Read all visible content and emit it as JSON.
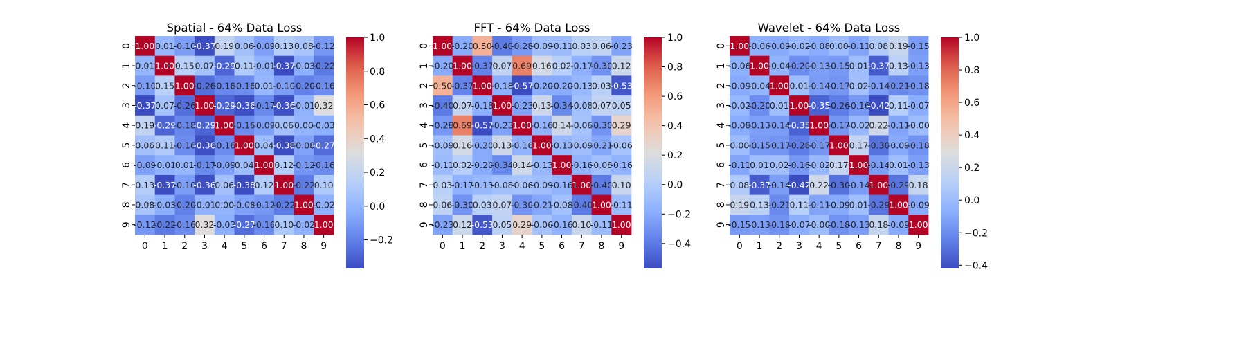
{
  "chart_data": [
    {
      "type": "heatmap",
      "title": "Spatial - 64% Data Loss",
      "x_labels": [
        "0",
        "1",
        "2",
        "3",
        "4",
        "5",
        "6",
        "7",
        "8",
        "9"
      ],
      "y_labels": [
        "0",
        "1",
        "2",
        "3",
        "4",
        "5",
        "6",
        "7",
        "8",
        "9"
      ],
      "vmin": -0.37,
      "vmax": 1.0,
      "colorbar_ticks": [
        1.0,
        0.8,
        0.6,
        0.4,
        0.2,
        0.0,
        -0.2
      ],
      "colorbar_tick_labels": [
        "1.0",
        "0.8",
        "0.6",
        "0.4",
        "0.2",
        "0.0",
        "−0.2"
      ],
      "colormap": "coolwarm",
      "cell_text": [
        [
          "1.00",
          "0.01",
          "-0.10",
          "-0.37",
          "0.19",
          "0.06",
          "-0.09",
          "0.13",
          "0.08",
          "-0.12"
        ],
        [
          "0.01",
          "1.00",
          "0.15",
          "0.07",
          "-0.29",
          "0.11",
          "-0.01",
          "-0.37",
          "-0.03",
          "-0.22"
        ],
        [
          "-0.10",
          "0.15",
          "1.00",
          "-0.26",
          "-0.18",
          "-0.16",
          "0.01",
          "-0.10",
          "-0.20",
          "-0.16"
        ],
        [
          "-0.37",
          "0.07",
          "-0.26",
          "1.00",
          "-0.29",
          "-0.36",
          "-0.17",
          "-0.36",
          "-0.01",
          "0.32"
        ],
        [
          "0.19",
          "-0.29",
          "-0.18",
          "-0.29",
          "1.00",
          "-0.16",
          "-0.09",
          "0.06",
          "0.00",
          "-0.03"
        ],
        [
          "0.06",
          "0.11",
          "-0.16",
          "-0.36",
          "-0.16",
          "1.00",
          "0.04",
          "-0.38",
          "-0.08",
          "-0.27"
        ],
        [
          "-0.09",
          "-0.01",
          "0.01",
          "-0.17",
          "-0.09",
          "0.04",
          "1.00",
          "0.12",
          "-0.12",
          "-0.16"
        ],
        [
          "0.13",
          "-0.37",
          "-0.10",
          "-0.36",
          "0.06",
          "-0.38",
          "0.12",
          "1.00",
          "-0.22",
          "0.10"
        ],
        [
          "0.08",
          "-0.03",
          "-0.20",
          "-0.01",
          "0.00",
          "-0.08",
          "-0.12",
          "-0.22",
          "1.00",
          "-0.02"
        ],
        [
          "-0.12",
          "-0.22",
          "-0.16",
          "0.32",
          "-0.03",
          "-0.27",
          "-0.16",
          "0.10",
          "-0.02",
          "1.00"
        ]
      ]
    },
    {
      "type": "heatmap",
      "title": "FFT - 64% Data Loss",
      "x_labels": [
        "0",
        "1",
        "2",
        "3",
        "4",
        "5",
        "6",
        "7",
        "8",
        "9"
      ],
      "y_labels": [
        "0",
        "1",
        "2",
        "3",
        "4",
        "5",
        "6",
        "7",
        "8",
        "9"
      ],
      "vmin": -0.57,
      "vmax": 1.0,
      "colorbar_ticks": [
        1.0,
        0.8,
        0.6,
        0.4,
        0.2,
        0.0,
        -0.2,
        -0.4
      ],
      "colorbar_tick_labels": [
        "1.0",
        "0.8",
        "0.6",
        "0.4",
        "0.2",
        "0.0",
        "−0.2",
        "−0.4"
      ],
      "colormap": "coolwarm",
      "cell_text": [
        [
          "1.00",
          "-0.20",
          "0.50",
          "-0.40",
          "-0.28",
          "-0.09",
          "-0.11",
          "0.03",
          "0.06",
          "-0.23"
        ],
        [
          "-0.20",
          "1.00",
          "-0.37",
          "0.07",
          "0.69",
          "0.16",
          "0.02",
          "-0.17",
          "-0.30",
          "0.12"
        ],
        [
          "0.50",
          "-0.37",
          "1.00",
          "-0.18",
          "-0.57",
          "-0.20",
          "-0.20",
          "-0.13",
          "0.03",
          "-0.53"
        ],
        [
          "-0.40",
          "0.07",
          "-0.18",
          "1.00",
          "-0.23",
          "0.13",
          "-0.34",
          "-0.08",
          "0.07",
          "0.05"
        ],
        [
          "-0.28",
          "0.69",
          "-0.57",
          "-0.23",
          "1.00",
          "-0.16",
          "0.14",
          "-0.06",
          "-0.30",
          "0.29"
        ],
        [
          "-0.09",
          "0.16",
          "-0.20",
          "0.13",
          "-0.16",
          "1.00",
          "-0.13",
          "-0.09",
          "-0.21",
          "-0.06"
        ],
        [
          "-0.11",
          "0.02",
          "-0.20",
          "-0.34",
          "0.14",
          "-0.13",
          "1.00",
          "-0.16",
          "-0.08",
          "-0.16"
        ],
        [
          "0.03",
          "-0.17",
          "-0.13",
          "-0.08",
          "-0.06",
          "-0.09",
          "-0.16",
          "1.00",
          "-0.40",
          "0.10"
        ],
        [
          "0.06",
          "-0.30",
          "0.03",
          "0.07",
          "-0.30",
          "-0.21",
          "-0.08",
          "-0.40",
          "1.00",
          "-0.11"
        ],
        [
          "-0.23",
          "0.12",
          "-0.53",
          "0.05",
          "0.29",
          "-0.06",
          "-0.16",
          "0.10",
          "-0.11",
          "1.00"
        ]
      ]
    },
    {
      "type": "heatmap",
      "title": "Wavelet - 64% Data Loss",
      "x_labels": [
        "0",
        "1",
        "2",
        "3",
        "4",
        "5",
        "6",
        "7",
        "8",
        "9"
      ],
      "y_labels": [
        "0",
        "1",
        "2",
        "3",
        "4",
        "5",
        "6",
        "7",
        "8",
        "9"
      ],
      "vmin": -0.42,
      "vmax": 1.0,
      "colorbar_ticks": [
        1.0,
        0.8,
        0.6,
        0.4,
        0.2,
        0.0,
        -0.2,
        -0.4
      ],
      "colorbar_tick_labels": [
        "1.0",
        "0.8",
        "0.6",
        "0.4",
        "0.2",
        "0.0",
        "−0.2",
        "−0.4"
      ],
      "colormap": "coolwarm",
      "cell_text": [
        [
          "1.00",
          "-0.06",
          "-0.09",
          "-0.02",
          "-0.08",
          "0.00",
          "-0.11",
          "0.08",
          "0.19",
          "-0.15"
        ],
        [
          "-0.06",
          "1.00",
          "-0.04",
          "-0.20",
          "-0.13",
          "-0.15",
          "0.01",
          "-0.37",
          "0.13",
          "-0.13"
        ],
        [
          "-0.09",
          "-0.04",
          "1.00",
          "0.01",
          "-0.14",
          "-0.17",
          "0.02",
          "-0.14",
          "-0.21",
          "-0.18"
        ],
        [
          "-0.02",
          "-0.20",
          "0.01",
          "1.00",
          "-0.35",
          "-0.26",
          "-0.16",
          "-0.42",
          "0.11",
          "-0.07"
        ],
        [
          "-0.08",
          "-0.13",
          "-0.14",
          "-0.35",
          "1.00",
          "-0.17",
          "-0.02",
          "0.22",
          "-0.11",
          "-0.00"
        ],
        [
          "0.00",
          "-0.15",
          "-0.17",
          "-0.26",
          "-0.17",
          "1.00",
          "0.17",
          "-0.30",
          "-0.09",
          "-0.18"
        ],
        [
          "-0.11",
          "0.01",
          "0.02",
          "-0.16",
          "-0.02",
          "0.17",
          "1.00",
          "-0.14",
          "0.01",
          "-0.13"
        ],
        [
          "0.08",
          "-0.37",
          "-0.14",
          "-0.42",
          "0.22",
          "-0.30",
          "-0.14",
          "1.00",
          "-0.29",
          "0.18"
        ],
        [
          "0.19",
          "0.13",
          "-0.21",
          "0.11",
          "-0.11",
          "-0.09",
          "0.01",
          "-0.29",
          "1.00",
          "-0.09"
        ],
        [
          "-0.15",
          "-0.13",
          "-0.18",
          "-0.07",
          "-0.00",
          "-0.18",
          "-0.13",
          "0.18",
          "-0.09",
          "1.00"
        ]
      ]
    }
  ]
}
